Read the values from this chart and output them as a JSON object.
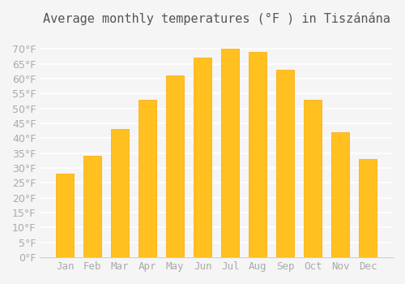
{
  "title": "Average monthly temperatures (°F ) in Tiszánána",
  "months": [
    "Jan",
    "Feb",
    "Mar",
    "Apr",
    "May",
    "Jun",
    "Jul",
    "Aug",
    "Sep",
    "Oct",
    "Nov",
    "Dec"
  ],
  "values": [
    28,
    34,
    43,
    53,
    61,
    67,
    70,
    69,
    63,
    53,
    42,
    33
  ],
  "bar_color": "#FFC020",
  "bar_edge_color": "#FFA500",
  "background_color": "#F5F5F5",
  "grid_color": "#FFFFFF",
  "text_color": "#AAAAAA",
  "ylim": [
    0,
    75
  ],
  "yticks": [
    0,
    5,
    10,
    15,
    20,
    25,
    30,
    35,
    40,
    45,
    50,
    55,
    60,
    65,
    70
  ],
  "ylabel_suffix": "°F",
  "title_fontsize": 11,
  "tick_fontsize": 9
}
